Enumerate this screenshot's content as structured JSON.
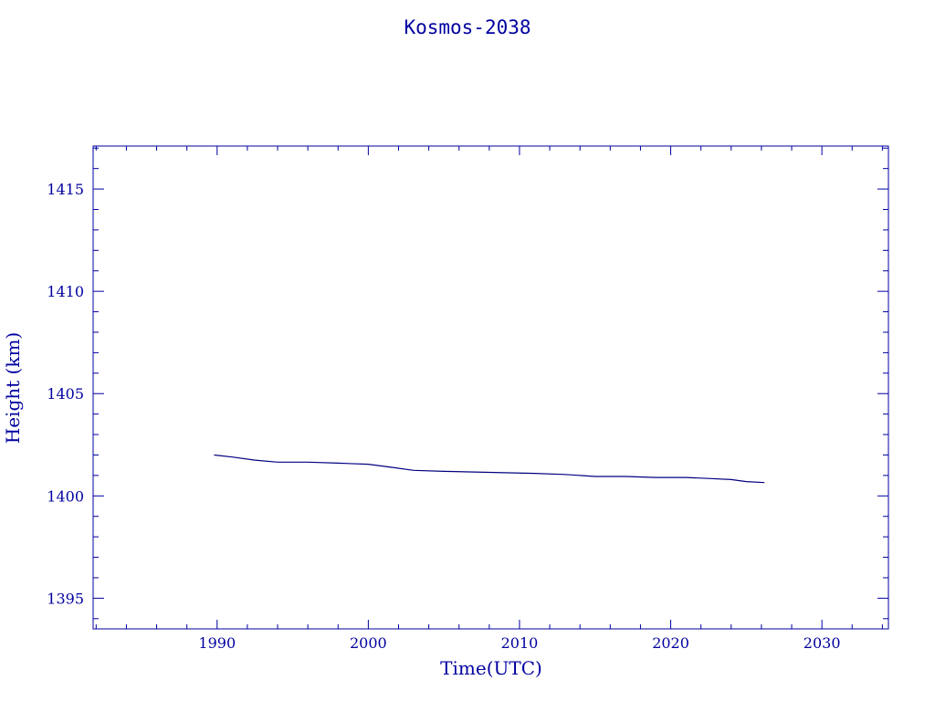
{
  "chart_data": {
    "type": "line",
    "title": "Kosmos-2038",
    "xlabel": "Time(UTC)",
    "ylabel": "Height (km)",
    "xlim": [
      1981.8,
      2034.4
    ],
    "ylim": [
      1393.5,
      1417.1
    ],
    "x_ticks": [
      "1990",
      "2000",
      "2010",
      "2020",
      "2030"
    ],
    "y_ticks": [
      "1395",
      "1400",
      "1405",
      "1410",
      "1415"
    ],
    "grid": false,
    "series": [
      {
        "x": [
          1989.8,
          1991.0,
          1992.5,
          1994.0,
          1996.0,
          1998.0,
          2000.0,
          2001.5,
          2003.0,
          2005.0,
          2008.0,
          2011.0,
          2013.0,
          2015.0,
          2017.0,
          2019.0,
          2021.0,
          2022.5,
          2024.0,
          2025.0,
          2026.2
        ],
        "y": [
          1402.0,
          1401.9,
          1401.75,
          1401.65,
          1401.65,
          1401.6,
          1401.55,
          1401.4,
          1401.25,
          1401.2,
          1401.15,
          1401.1,
          1401.05,
          1400.95,
          1400.95,
          1400.9,
          1400.9,
          1400.85,
          1400.8,
          1400.7,
          1400.65
        ]
      }
    ]
  },
  "colors": {
    "axis": "#0000a0",
    "line": "#000080"
  }
}
